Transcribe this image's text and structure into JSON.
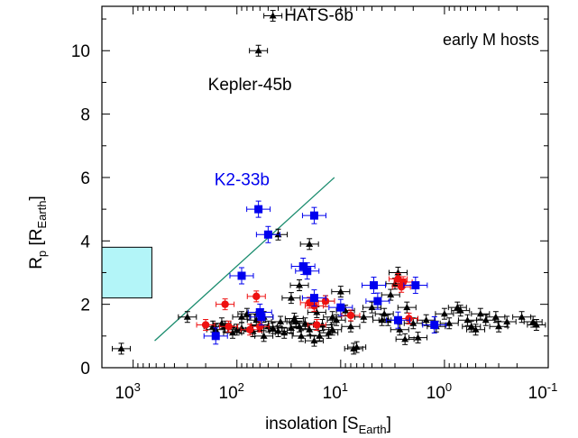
{
  "chart_data": {
    "type": "scatter",
    "x_scale": "log",
    "x_reversed": true,
    "xlim": [
      2000,
      0.1
    ],
    "ylim": [
      0,
      11.4
    ],
    "grid": false,
    "xlabel": {
      "main": "insolation [S",
      "sub": "Earth",
      "end": "]"
    },
    "ylabel": {
      "main": "R",
      "sub1": "p",
      "mid": " [R",
      "sub2": "Earth",
      "end": "]"
    },
    "x_ticks": [
      {
        "value": 1000,
        "base": "10",
        "exp": "3"
      },
      {
        "value": 100,
        "base": "10",
        "exp": "2"
      },
      {
        "value": 10,
        "base": "10",
        "exp": "1"
      },
      {
        "value": 1,
        "base": "10",
        "exp": "0"
      },
      {
        "value": 0.1,
        "base": "10",
        "exp": "-1"
      }
    ],
    "y_ticks": [
      {
        "value": 0,
        "label": "0"
      },
      {
        "value": 2,
        "label": "2"
      },
      {
        "value": 4,
        "label": "4"
      },
      {
        "value": 6,
        "label": "6"
      },
      {
        "value": 8,
        "label": "8"
      },
      {
        "value": 10,
        "label": "10"
      }
    ],
    "top_right_text": "early M hosts",
    "annotations": [
      {
        "text": "HATS-6b",
        "x": 35,
        "y": 11.15,
        "color": "#000000"
      },
      {
        "text": "Kepler-45b",
        "x": 190,
        "y": 8.95,
        "color": "#000000"
      },
      {
        "text": "K2-33b",
        "x": 165,
        "y": 5.95,
        "color": "#0000ee"
      }
    ],
    "shaded_box": {
      "x0": 2000,
      "x1": 660,
      "y0": 2.2,
      "y1": 3.8,
      "fill": "#b3f5f8"
    },
    "trend_line": {
      "x0": 620,
      "y0": 0.85,
      "x1": 11.5,
      "y1": 6.0,
      "color": "#1a8c6e"
    },
    "colors": {
      "black": "#000000",
      "red": "#ee1111",
      "blue": "#0000ee"
    },
    "series": [
      {
        "marker": "triangle",
        "color": "#000000",
        "points": [
          [
            1300,
            0.6
          ],
          [
            300,
            1.6
          ],
          [
            45,
            11.1
          ],
          [
            62,
            10.0
          ],
          [
            40,
            4.2
          ],
          [
            20,
            3.9
          ],
          [
            25,
            2.6
          ],
          [
            30,
            2.2
          ],
          [
            14,
            2.1
          ],
          [
            10,
            2.4
          ],
          [
            2.8,
            3.0
          ],
          [
            2.3,
            1.9
          ],
          [
            3.8,
            1.7
          ],
          [
            6,
            1.6
          ],
          [
            4,
            1.5
          ],
          [
            2,
            1.4
          ],
          [
            1.5,
            1.5
          ],
          [
            1.2,
            1.3
          ],
          [
            1.0,
            1.7
          ],
          [
            0.9,
            1.4
          ],
          [
            0.7,
            1.8
          ],
          [
            0.6,
            1.5
          ],
          [
            0.55,
            1.3
          ],
          [
            0.5,
            1.2
          ],
          [
            0.4,
            1.5
          ],
          [
            0.32,
            1.6
          ],
          [
            1.8,
            0.95
          ],
          [
            0.75,
            1.9
          ],
          [
            0.45,
            1.7
          ],
          [
            0.3,
            1.3
          ],
          [
            0.25,
            1.45
          ],
          [
            0.18,
            1.6
          ],
          [
            0.14,
            1.45
          ],
          [
            0.13,
            1.35
          ],
          [
            8,
            1.3
          ],
          [
            7,
            0.65
          ],
          [
            9,
            1.8
          ],
          [
            11,
            1.5
          ],
          [
            12,
            1.2
          ],
          [
            13,
            1.1
          ],
          [
            15,
            1.35
          ],
          [
            16,
            1.0
          ],
          [
            18,
            0.85
          ],
          [
            20,
            1.2
          ],
          [
            22,
            1.4
          ],
          [
            25,
            1.3
          ],
          [
            27,
            1.45
          ],
          [
            30,
            1.25
          ],
          [
            35,
            1.1
          ],
          [
            40,
            1.15
          ],
          [
            45,
            1.25
          ],
          [
            50,
            1.3
          ],
          [
            55,
            1.0
          ],
          [
            60,
            1.35
          ],
          [
            70,
            1.15
          ],
          [
            80,
            1.7
          ],
          [
            90,
            1.25
          ],
          [
            100,
            1.2
          ],
          [
            110,
            1.1
          ],
          [
            130,
            1.3
          ],
          [
            140,
            1.4
          ],
          [
            160,
            1.2
          ],
          [
            170,
            1.3
          ],
          [
            90,
            1.6
          ],
          [
            65,
            1.5
          ],
          [
            28,
            1.55
          ],
          [
            17,
            1.75
          ],
          [
            12,
            1.6
          ],
          [
            5,
            1.9
          ],
          [
            3.3,
            2.3
          ],
          [
            2.7,
            1.2
          ],
          [
            2.4,
            0.9
          ],
          [
            3.0,
            2.65
          ],
          [
            3.5,
            1.5
          ],
          [
            7.5,
            0.6
          ],
          [
            24,
            1.0
          ],
          [
            38,
            1.45
          ],
          [
            55,
            1.6
          ]
        ]
      },
      {
        "marker": "circle",
        "color": "#ee1111",
        "points": [
          [
            200,
            1.35
          ],
          [
            130,
            2.0
          ],
          [
            120,
            1.3
          ],
          [
            75,
            1.2
          ],
          [
            65,
            2.25
          ],
          [
            60,
            1.3
          ],
          [
            20,
            2.05
          ],
          [
            18,
            1.95
          ],
          [
            17,
            1.35
          ],
          [
            14,
            2.1
          ],
          [
            8,
            1.65
          ],
          [
            2.8,
            2.8
          ],
          [
            2.6,
            2.55
          ],
          [
            2.5,
            2.7
          ],
          [
            2.2,
            1.55
          ]
        ]
      },
      {
        "marker": "square",
        "color": "#0000ee",
        "points": [
          [
            62,
            5.0
          ],
          [
            50,
            4.2
          ],
          [
            18,
            4.8
          ],
          [
            90,
            2.9
          ],
          [
            23,
            3.2
          ],
          [
            21,
            3.05
          ],
          [
            18,
            2.2
          ],
          [
            60,
            1.75
          ],
          [
            58,
            1.6
          ],
          [
            160,
            1.0
          ],
          [
            10,
            1.9
          ],
          [
            4.8,
            2.6
          ],
          [
            4.4,
            2.1
          ],
          [
            2.8,
            1.5
          ],
          [
            1.9,
            2.6
          ],
          [
            1.25,
            1.35
          ]
        ]
      }
    ]
  }
}
